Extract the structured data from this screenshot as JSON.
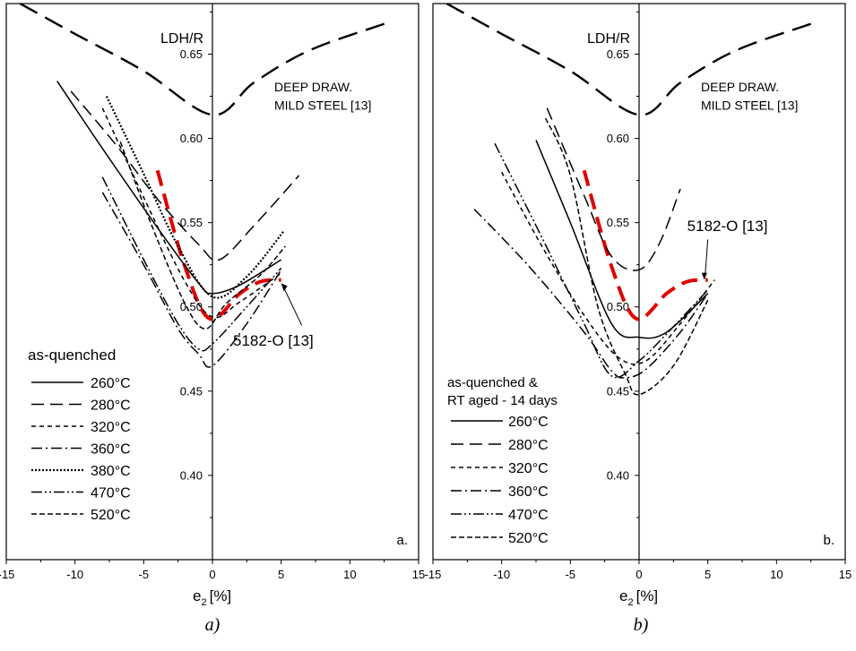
{
  "chart_data": [
    {
      "type": "line",
      "panel_letter": "a.",
      "caption": "a)",
      "ylabel": "LDH/R",
      "xlabel_main": "e",
      "xlabel_sub": "2",
      "xlabel_unit": "[%]",
      "xlim": [
        -15,
        15
      ],
      "ylim": [
        0.35,
        0.68
      ],
      "x_ticks": [
        "-15",
        "-10",
        "-5",
        "0",
        "5",
        "10",
        "15"
      ],
      "y_ticks": [
        "0.40",
        "0.45",
        "0.50",
        "0.55",
        "0.60",
        "0.65"
      ],
      "legend_title": "as-quenched",
      "legend_placement": "bottom-left",
      "mild_steel_label_1": "DEEP DRAW.",
      "mild_steel_label_2": "MILD STEEL [13]",
      "ref_label": "5182-O [13]",
      "reference_series": [
        {
          "name": "DEEP DRAW. MILD STEEL [13]",
          "color": "#000000",
          "dash": "long",
          "points": [
            [
              -14,
              0.68
            ],
            [
              -10,
              0.662
            ],
            [
              -5,
              0.64
            ],
            [
              0,
              0.614
            ],
            [
              3,
              0.633
            ],
            [
              7,
              0.652
            ],
            [
              12.5,
              0.668
            ]
          ]
        },
        {
          "name": "5182-O [13]",
          "color": "#e00000",
          "dash": "thick",
          "points": [
            [
              -4,
              0.581
            ],
            [
              -2,
              0.524
            ],
            [
              -0.2,
              0.493
            ],
            [
              2,
              0.508
            ],
            [
              3.5,
              0.515
            ],
            [
              5,
              0.516
            ]
          ]
        }
      ],
      "series": [
        {
          "name": "260°C",
          "dash": "solid",
          "points": [
            [
              -11.3,
              0.634
            ],
            [
              -8,
              0.594
            ],
            [
              -4,
              0.547
            ],
            [
              -1,
              0.514
            ],
            [
              0,
              0.508
            ],
            [
              2,
              0.513
            ],
            [
              5,
              0.528
            ]
          ]
        },
        {
          "name": "280°C",
          "dash": "dash",
          "points": [
            [
              -10.3,
              0.628
            ],
            [
              -7,
              0.596
            ],
            [
              -4,
              0.564
            ],
            [
              -1,
              0.537
            ],
            [
              0.5,
              0.528
            ],
            [
              3,
              0.548
            ],
            [
              6.3,
              0.578
            ]
          ]
        },
        {
          "name": "320°C",
          "dash": "shortdash",
          "points": [
            [
              -8,
              0.618
            ],
            [
              -5,
              0.565
            ],
            [
              -2,
              0.515
            ],
            [
              0,
              0.494
            ],
            [
              2,
              0.503
            ],
            [
              5,
              0.52
            ]
          ]
        },
        {
          "name": "360°C",
          "dash": "dashdot",
          "points": [
            [
              -8,
              0.568
            ],
            [
              -5,
              0.525
            ],
            [
              -2.5,
              0.487
            ],
            [
              -1,
              0.472
            ],
            [
              0,
              0.465
            ],
            [
              2.5,
              0.49
            ],
            [
              5,
              0.522
            ]
          ]
        },
        {
          "name": "380°C",
          "dash": "dot",
          "points": [
            [
              -7.7,
              0.625
            ],
            [
              -5,
              0.579
            ],
            [
              -2.5,
              0.536
            ],
            [
              0,
              0.506
            ],
            [
              2.5,
              0.518
            ],
            [
              5.2,
              0.545
            ]
          ]
        },
        {
          "name": "470°C",
          "dash": "dashdotdot",
          "points": [
            [
              -8,
              0.577
            ],
            [
              -5,
              0.528
            ],
            [
              -2.5,
              0.49
            ],
            [
              -1,
              0.475
            ],
            [
              0,
              0.478
            ],
            [
              2.5,
              0.5
            ],
            [
              5,
              0.523
            ]
          ]
        },
        {
          "name": "520°C",
          "dash": "shortdash2",
          "points": [
            [
              -6.7,
              0.598
            ],
            [
              -4.5,
              0.55
            ],
            [
              -2,
              0.502
            ],
            [
              -0.5,
              0.487
            ],
            [
              1,
              0.502
            ],
            [
              3.5,
              0.519
            ],
            [
              5.3,
              0.536
            ]
          ]
        }
      ]
    },
    {
      "type": "line",
      "panel_letter": "b.",
      "caption": "b)",
      "ylabel": "LDH/R",
      "xlabel_main": "e",
      "xlabel_sub": "2",
      "xlabel_unit": "[%]",
      "xlim": [
        -15,
        15
      ],
      "ylim": [
        0.35,
        0.68
      ],
      "x_ticks": [
        "-15",
        "-10",
        "-5",
        "0",
        "5",
        "10",
        "15"
      ],
      "y_ticks": [
        "0.40",
        "0.45",
        "0.50",
        "0.55",
        "0.60",
        "0.65"
      ],
      "legend_title": "as-quenched &",
      "legend_title_2": "RT aged - 14 days",
      "legend_placement": "bottom-left",
      "mild_steel_label_1": "DEEP DRAW.",
      "mild_steel_label_2": "MILD STEEL [13]",
      "ref_label": "5182-O [13]",
      "reference_series": [
        {
          "name": "DEEP DRAW. MILD STEEL [13]",
          "color": "#000000",
          "dash": "long",
          "points": [
            [
              -14,
              0.68
            ],
            [
              -10,
              0.662
            ],
            [
              -5,
              0.64
            ],
            [
              0,
              0.614
            ],
            [
              3,
              0.633
            ],
            [
              7,
              0.652
            ],
            [
              12.5,
              0.668
            ]
          ]
        },
        {
          "name": "5182-O [13]",
          "color": "#e00000",
          "dash": "thick",
          "points": [
            [
              -4,
              0.581
            ],
            [
              -2,
              0.524
            ],
            [
              -0.2,
              0.493
            ],
            [
              2,
              0.508
            ],
            [
              3.5,
              0.515
            ],
            [
              5,
              0.516
            ]
          ]
        }
      ],
      "series": [
        {
          "name": "260°C",
          "dash": "solid",
          "points": [
            [
              -7.5,
              0.599
            ],
            [
              -5,
              0.55
            ],
            [
              -2,
              0.49
            ],
            [
              0,
              0.482
            ],
            [
              2,
              0.485
            ],
            [
              5,
              0.508
            ]
          ]
        },
        {
          "name": "280°C",
          "dash": "dash",
          "points": [
            [
              -6.7,
              0.618
            ],
            [
              -4,
              0.566
            ],
            [
              -2,
              0.53
            ],
            [
              0,
              0.522
            ],
            [
              1.5,
              0.538
            ],
            [
              3,
              0.57
            ]
          ]
        },
        {
          "name": "320°C",
          "dash": "shortdash",
          "points": [
            [
              -10,
              0.58
            ],
            [
              -7,
              0.535
            ],
            [
              -4,
              0.495
            ],
            [
              -1.5,
              0.47
            ],
            [
              0.5,
              0.468
            ],
            [
              3,
              0.49
            ],
            [
              5.5,
              0.516
            ]
          ]
        },
        {
          "name": "360°C",
          "dash": "dashdot",
          "points": [
            [
              -12,
              0.558
            ],
            [
              -8,
              0.524
            ],
            [
              -4,
              0.485
            ],
            [
              -2,
              0.462
            ],
            [
              -1,
              0.458
            ],
            [
              0.5,
              0.463
            ],
            [
              3,
              0.485
            ],
            [
              5,
              0.508
            ]
          ]
        },
        {
          "name": "470°C",
          "dash": "dashdotdot",
          "points": [
            [
              -10.5,
              0.597
            ],
            [
              -7,
              0.54
            ],
            [
              -4,
              0.49
            ],
            [
              -2,
              0.459
            ],
            [
              0,
              0.468
            ],
            [
              2,
              0.484
            ],
            [
              5,
              0.51
            ]
          ]
        },
        {
          "name": "520°C",
          "dash": "shortdash2",
          "points": [
            [
              -6.8,
              0.612
            ],
            [
              -5,
              0.578
            ],
            [
              -3,
              0.5
            ],
            [
              -1,
              0.46
            ],
            [
              0,
              0.448
            ],
            [
              2.5,
              0.465
            ],
            [
              5,
              0.504
            ]
          ]
        }
      ]
    }
  ]
}
